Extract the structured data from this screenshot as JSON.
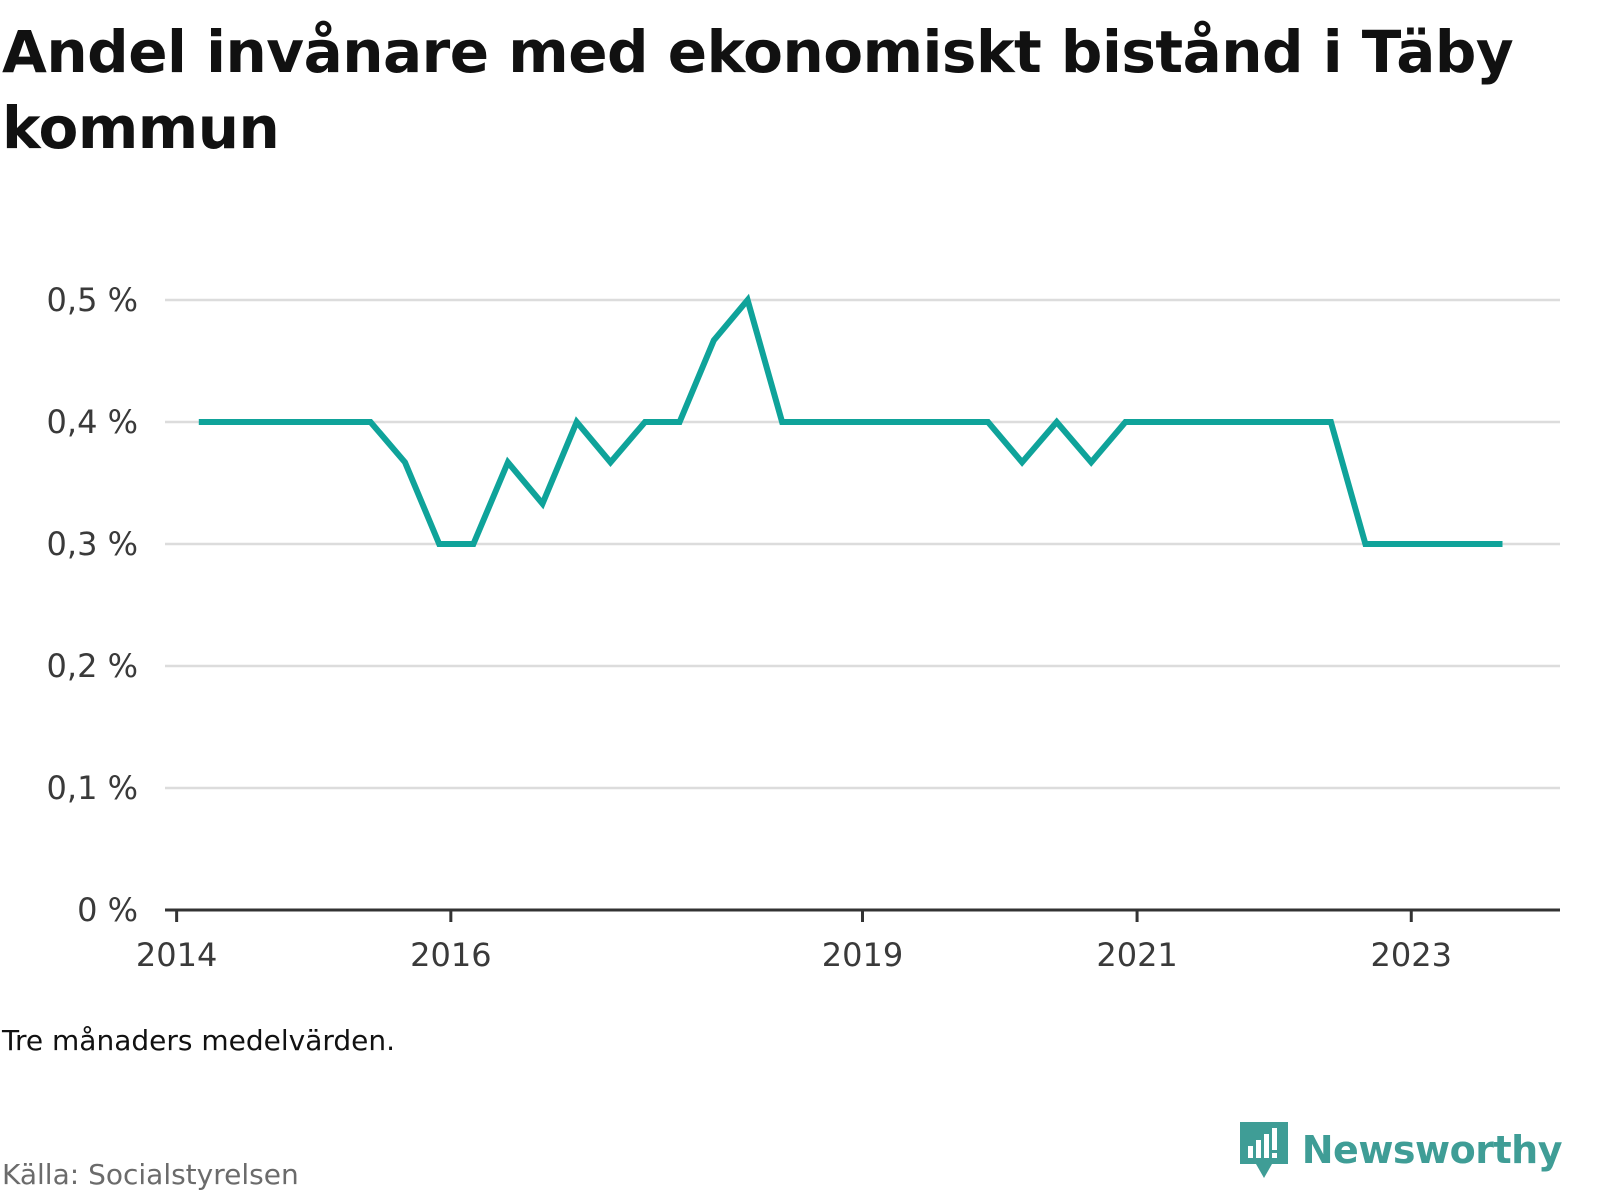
{
  "chart_data": {
    "type": "line",
    "title": "Andel invånare med ekonomiskt bistånd i Täby kommun",
    "note": "Tre månaders medelvärden.",
    "source": "Källa: Socialstyrelsen",
    "brand": "Newsworthy",
    "xlabel": "",
    "ylabel": "",
    "y_unit": "%",
    "ylim": [
      0,
      0.5
    ],
    "y_ticks": [
      0,
      0.1,
      0.2,
      0.3,
      0.4,
      0.5
    ],
    "y_tick_labels": [
      "0 %",
      "0,1 %",
      "0,2 %",
      "0,3 %",
      "0,4 %",
      "0,5 %"
    ],
    "x_ticks": [
      "2014-01",
      "2016-01",
      "2019-01",
      "2021-01",
      "2023-01"
    ],
    "x_tick_labels": [
      "2014",
      "2016",
      "2019",
      "2021",
      "2023"
    ],
    "grid": true,
    "color": "#0fa39a",
    "series": [
      {
        "x": [
          "2014-03",
          "2014-06",
          "2014-09",
          "2014-12",
          "2015-03",
          "2015-06",
          "2015-09",
          "2015-12",
          "2016-03",
          "2016-06",
          "2016-09",
          "2016-12",
          "2017-03",
          "2017-06",
          "2017-09",
          "2017-12",
          "2018-03",
          "2018-06",
          "2018-09",
          "2018-12",
          "2019-03",
          "2019-06",
          "2019-09",
          "2019-12",
          "2020-03",
          "2020-06",
          "2020-09",
          "2020-12",
          "2021-03",
          "2021-06",
          "2021-09",
          "2021-12",
          "2022-03",
          "2022-06",
          "2022-09",
          "2022-12",
          "2023-03",
          "2023-06",
          "2023-09"
        ],
        "y": [
          0.4,
          0.4,
          0.4,
          0.4,
          0.4,
          0.4,
          0.367,
          0.3,
          0.3,
          0.367,
          0.333,
          0.4,
          0.367,
          0.4,
          0.4,
          0.467,
          0.5,
          0.4,
          0.4,
          0.4,
          0.4,
          0.4,
          0.4,
          0.4,
          0.367,
          0.4,
          0.367,
          0.4,
          0.4,
          0.4,
          0.4,
          0.4,
          0.4,
          0.4,
          0.3,
          0.3,
          0.3,
          0.3,
          0.3
        ]
      }
    ]
  }
}
